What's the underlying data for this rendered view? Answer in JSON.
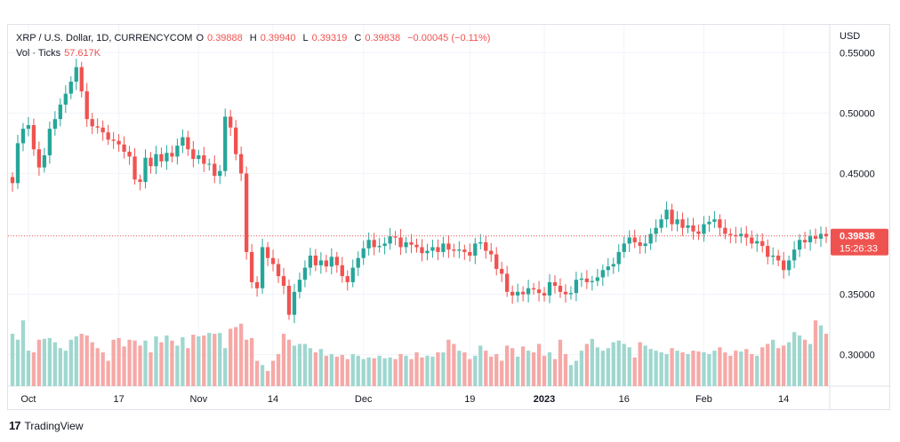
{
  "header": {
    "symbol": "XRP / U.S. Dollar, 1D, CURRENCYCOM",
    "open_label": "O",
    "open_value": "0.39888",
    "high_label": "H",
    "high_value": "0.39940",
    "low_label": "L",
    "low_value": "0.39319",
    "close_label": "C",
    "close_value": "0.39838",
    "change": "−0.00045 (−0.11%)",
    "vol_label": "Vol · Ticks",
    "vol_value": "57.617K"
  },
  "price_axis": {
    "currency": "USD"
  },
  "last_price": {
    "value": "0.39838",
    "countdown": "15:26:33"
  },
  "brand": {
    "name": "TradingView",
    "logo_text": "17"
  },
  "colors": {
    "up": "#26a69a",
    "down": "#ef5350",
    "up_vol": "#9fd7cf",
    "down_vol": "#f5a9a7",
    "grid": "#f0f3fa",
    "axis_text": "#131722",
    "price_line": "#ef5350"
  },
  "chart_data": {
    "type": "candlestick",
    "title": "XRP / U.S. Dollar, 1D, CURRENCYCOM",
    "ylabel": "USD",
    "y_ticks": [
      "0.55000",
      "0.50000",
      "0.45000",
      "0.35000",
      "0.30000"
    ],
    "y_tick_values": [
      0.55,
      0.5,
      0.45,
      0.35,
      0.3
    ],
    "ylim": [
      0.274,
      0.573
    ],
    "x_tick_labels": [
      "Oct",
      "17",
      "Nov",
      "14",
      "Dec",
      "19",
      "2023",
      "16",
      "Feb",
      "14"
    ],
    "x_tick_indices": [
      3,
      20,
      35,
      49,
      66,
      86,
      100,
      115,
      130,
      145
    ],
    "grid": true,
    "legend": "top-left",
    "closes": [
      0.442,
      0.475,
      0.487,
      0.49,
      0.47,
      0.455,
      0.465,
      0.487,
      0.495,
      0.507,
      0.516,
      0.526,
      0.538,
      0.518,
      0.495,
      0.489,
      0.488,
      0.484,
      0.478,
      0.477,
      0.474,
      0.468,
      0.464,
      0.445,
      0.443,
      0.463,
      0.456,
      0.466,
      0.46,
      0.467,
      0.464,
      0.473,
      0.48,
      0.47,
      0.462,
      0.465,
      0.458,
      0.458,
      0.448,
      0.452,
      0.497,
      0.488,
      0.466,
      0.45,
      0.385,
      0.36,
      0.355,
      0.389,
      0.38,
      0.375,
      0.365,
      0.357,
      0.333,
      0.352,
      0.362,
      0.372,
      0.382,
      0.374,
      0.378,
      0.373,
      0.381,
      0.374,
      0.365,
      0.36,
      0.372,
      0.38,
      0.388,
      0.395,
      0.389,
      0.39,
      0.392,
      0.398,
      0.397,
      0.389,
      0.393,
      0.391,
      0.389,
      0.384,
      0.386,
      0.389,
      0.385,
      0.392,
      0.387,
      0.386,
      0.387,
      0.385,
      0.382,
      0.392,
      0.393,
      0.386,
      0.383,
      0.371,
      0.367,
      0.352,
      0.349,
      0.352,
      0.35,
      0.355,
      0.354,
      0.351,
      0.349,
      0.36,
      0.357,
      0.352,
      0.35,
      0.351,
      0.362,
      0.363,
      0.36,
      0.361,
      0.364,
      0.37,
      0.373,
      0.375,
      0.385,
      0.392,
      0.397,
      0.393,
      0.39,
      0.392,
      0.4,
      0.405,
      0.412,
      0.42,
      0.408,
      0.412,
      0.405,
      0.407,
      0.402,
      0.4,
      0.408,
      0.41,
      0.412,
      0.405,
      0.4,
      0.399,
      0.398,
      0.4,
      0.397,
      0.392,
      0.394,
      0.39,
      0.381,
      0.382,
      0.378,
      0.37,
      0.378,
      0.387,
      0.395,
      0.393,
      0.398,
      0.396,
      0.4,
      0.398
    ],
    "volume_scale": "relative",
    "volumes": [
      0.62,
      0.55,
      0.78,
      0.42,
      0.4,
      0.55,
      0.56,
      0.57,
      0.52,
      0.45,
      0.42,
      0.55,
      0.59,
      0.62,
      0.6,
      0.52,
      0.45,
      0.4,
      0.3,
      0.55,
      0.57,
      0.47,
      0.55,
      0.54,
      0.48,
      0.54,
      0.4,
      0.59,
      0.52,
      0.6,
      0.54,
      0.48,
      0.58,
      0.45,
      0.61,
      0.59,
      0.6,
      0.63,
      0.62,
      0.63,
      0.45,
      0.68,
      0.7,
      0.74,
      0.55,
      0.57,
      0.3,
      0.25,
      0.18,
      0.3,
      0.38,
      0.62,
      0.55,
      0.48,
      0.5,
      0.5,
      0.45,
      0.4,
      0.44,
      0.36,
      0.38,
      0.35,
      0.37,
      0.32,
      0.38,
      0.36,
      0.32,
      0.34,
      0.33,
      0.36,
      0.33,
      0.34,
      0.32,
      0.38,
      0.36,
      0.32,
      0.4,
      0.34,
      0.36,
      0.35,
      0.4,
      0.4,
      0.55,
      0.5,
      0.42,
      0.4,
      0.32,
      0.36,
      0.48,
      0.42,
      0.35,
      0.38,
      0.3,
      0.48,
      0.45,
      0.35,
      0.47,
      0.42,
      0.4,
      0.5,
      0.36,
      0.4,
      0.32,
      0.55,
      0.38,
      0.25,
      0.3,
      0.42,
      0.5,
      0.56,
      0.46,
      0.42,
      0.45,
      0.52,
      0.54,
      0.5,
      0.46,
      0.34,
      0.52,
      0.48,
      0.44,
      0.42,
      0.4,
      0.38,
      0.45,
      0.42,
      0.4,
      0.38,
      0.42,
      0.41,
      0.4,
      0.38,
      0.42,
      0.46,
      0.4,
      0.36,
      0.42,
      0.41,
      0.44,
      0.38,
      0.36,
      0.46,
      0.5,
      0.55,
      0.45,
      0.48,
      0.52,
      0.64,
      0.6,
      0.55,
      0.5,
      0.78,
      0.72,
      0.62
    ]
  }
}
